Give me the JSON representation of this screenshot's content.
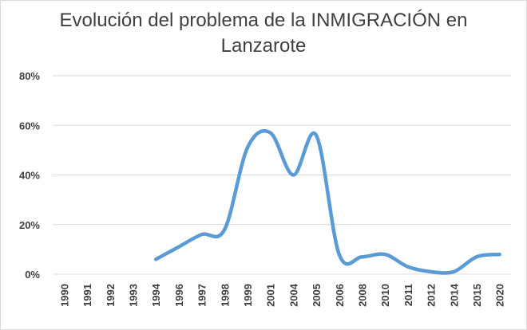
{
  "chart_data": {
    "type": "line",
    "title_line1": "Evolución del problema de la INMIGRACIÓN en",
    "title_line2": "Lanzarote",
    "xlabel": "",
    "ylabel": "",
    "categories": [
      "1990",
      "1991",
      "1992",
      "1993",
      "1994",
      "1996",
      "1997",
      "1998",
      "1999",
      "2001",
      "2004",
      "2005",
      "2006",
      "2008",
      "2010",
      "2011",
      "2012",
      "2014",
      "2015",
      "2020"
    ],
    "series": [
      {
        "name": "Inmigración",
        "color": "#5b9bd5",
        "values": [
          null,
          null,
          null,
          null,
          6,
          11,
          16,
          18,
          51,
          57,
          40,
          56,
          8,
          7,
          8,
          3,
          1,
          1,
          7,
          8
        ]
      }
    ],
    "ylim": [
      0,
      80
    ],
    "yticks": [
      0,
      20,
      40,
      60,
      80
    ],
    "ytick_labels": [
      "0%",
      "20%",
      "40%",
      "60%",
      "80%"
    ],
    "grid": true,
    "legend": "none"
  }
}
